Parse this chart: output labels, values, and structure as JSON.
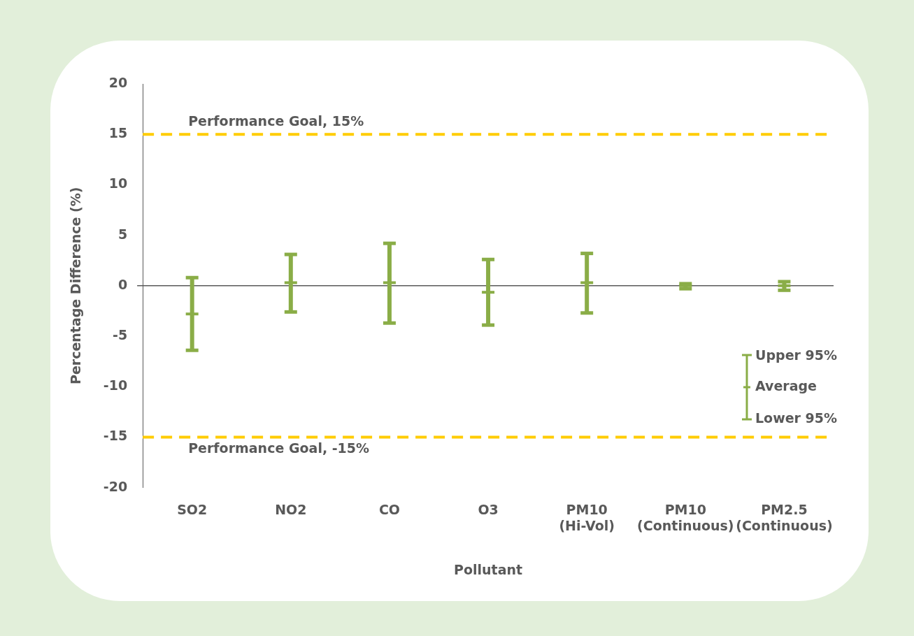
{
  "chart_data": {
    "type": "box",
    "xlabel": "Pollutant",
    "ylabel": "Percentage Difference (%)",
    "categories": [
      "SO2",
      "NO2",
      "CO",
      "O3",
      "PM10\n(Hi-Vol)",
      "PM10\n(Continuous)",
      "PM2.5\n(Continuous)"
    ],
    "series": [
      {
        "color": "#8aad47",
        "boxes": [
          {
            "low": -6.4,
            "q1": -2.8,
            "median": -2.8,
            "q3": -2.8,
            "high": 0.8
          },
          {
            "low": -2.6,
            "q1": 0.3,
            "median": 0.3,
            "q3": 0.3,
            "high": 3.1
          },
          {
            "low": -3.7,
            "q1": 0.3,
            "median": 0.3,
            "q3": 0.3,
            "high": 4.2
          },
          {
            "low": -3.9,
            "q1": -0.65,
            "median": -0.65,
            "q3": -0.65,
            "high": 2.6
          },
          {
            "low": -2.7,
            "q1": 0.3,
            "median": 0.3,
            "q3": 0.3,
            "high": 3.2
          },
          {
            "low": -0.3,
            "q1": 0,
            "median": 0,
            "q3": 0,
            "high": 0.2
          },
          {
            "low": -0.45,
            "q1": 0,
            "median": 0,
            "q3": 0,
            "high": 0.4
          }
        ]
      }
    ],
    "ylim": [
      -20,
      20
    ],
    "yticks": [
      -20,
      -15,
      -10,
      -5,
      0,
      5,
      10,
      15,
      20
    ],
    "grid": false,
    "ref_lines": [
      {
        "axis": "y",
        "value": 15,
        "label": "Performance Goal, 15%",
        "color": "#ffcc00",
        "line_style": "dashed"
      },
      {
        "axis": "y",
        "value": -15,
        "label": "Performance Goal, -15%",
        "color": "#ffcc00",
        "line_style": "dashed"
      }
    ],
    "annotations": [
      "Upper 95%",
      "Average",
      "Lower 95%"
    ]
  }
}
